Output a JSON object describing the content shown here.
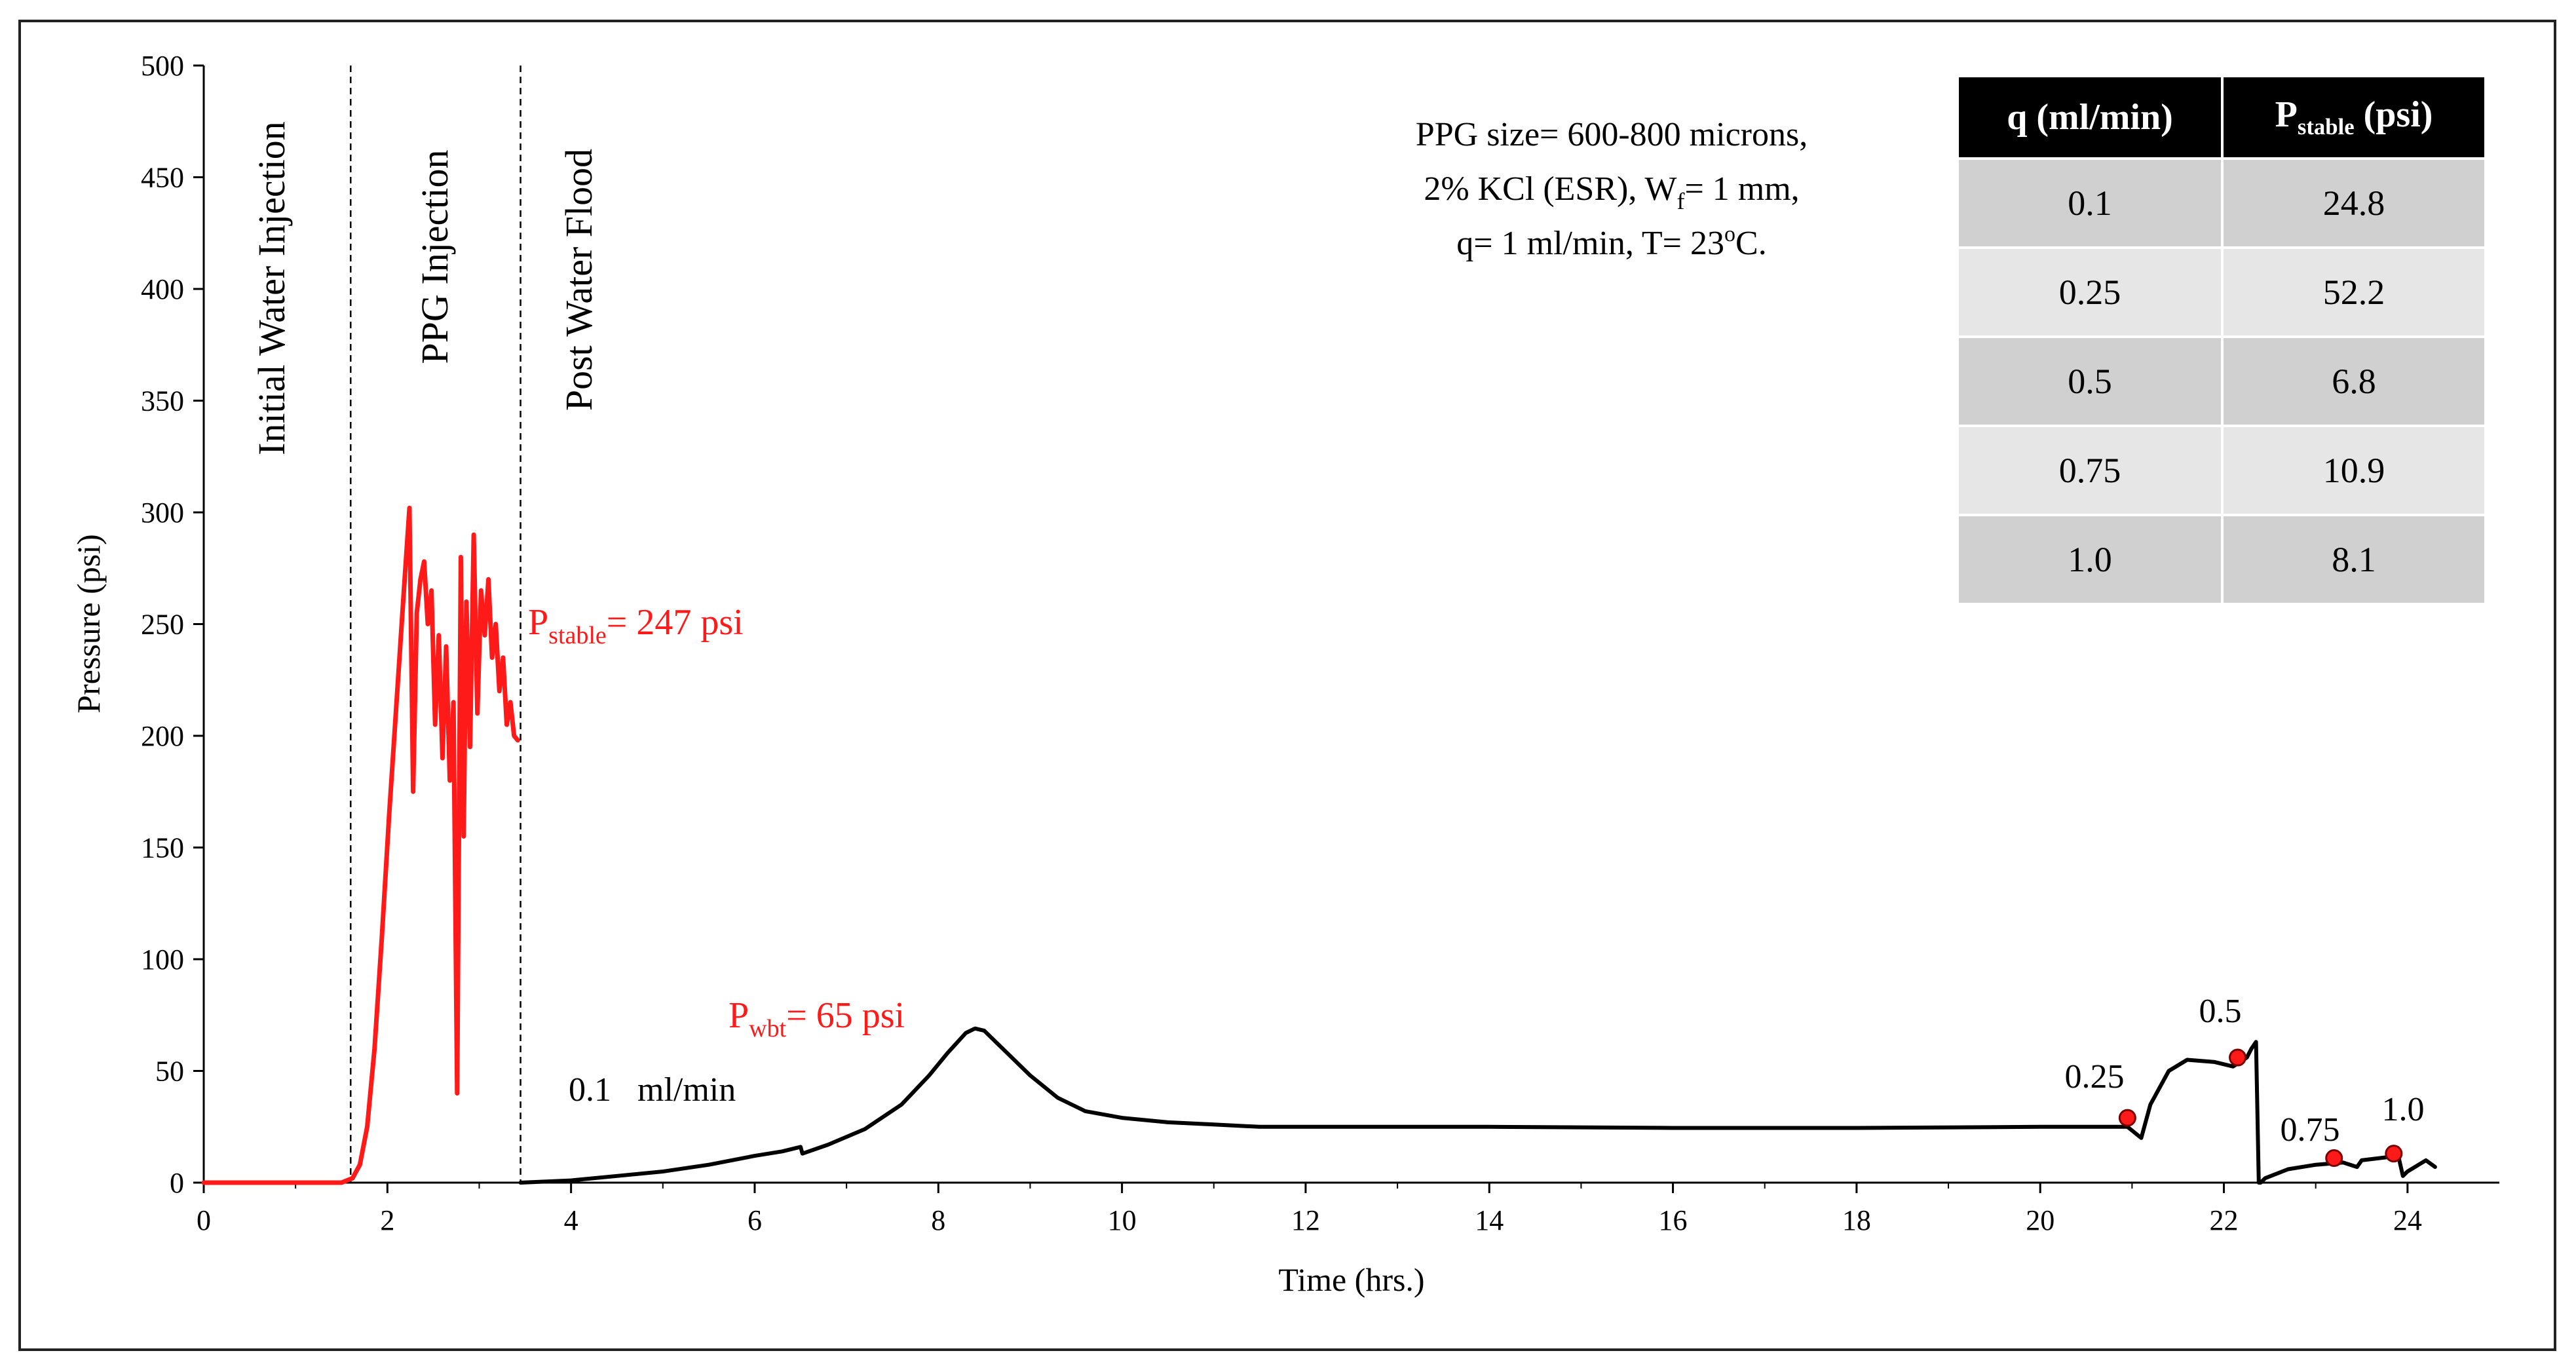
{
  "chart_data": {
    "type": "line",
    "xlabel": "Time (hrs.)",
    "ylabel": "Pressure (psi)",
    "xlim": [
      0,
      25
    ],
    "ylim": [
      0,
      500
    ],
    "xticks": [
      0,
      2,
      4,
      6,
      8,
      10,
      12,
      14,
      16,
      18,
      20,
      22,
      24
    ],
    "yticks": [
      0,
      50,
      100,
      150,
      200,
      250,
      300,
      350,
      400,
      450,
      500
    ],
    "grid": false,
    "phase_boundaries": [
      1.6,
      3.45
    ],
    "phase_labels": [
      "Initial Water Injection",
      "PPG Injection",
      "Post Water Flood"
    ],
    "series": [
      {
        "color": "#ff1a1a",
        "x": [
          0,
          1.5,
          1.62,
          1.7,
          1.78,
          1.86,
          1.94,
          2.02,
          2.1,
          2.18,
          2.24,
          2.28,
          2.32,
          2.36,
          2.4,
          2.44,
          2.48,
          2.52,
          2.56,
          2.6,
          2.64,
          2.68,
          2.72,
          2.76,
          2.8,
          2.83,
          2.86,
          2.9,
          2.94,
          2.98,
          3.02,
          3.06,
          3.1,
          3.14,
          3.18,
          3.22,
          3.26,
          3.3,
          3.34,
          3.38,
          3.42
        ],
        "y": [
          0,
          0,
          2,
          8,
          25,
          60,
          110,
          165,
          215,
          265,
          302,
          175,
          255,
          270,
          278,
          250,
          265,
          205,
          245,
          190,
          240,
          180,
          215,
          40,
          280,
          155,
          260,
          195,
          290,
          210,
          265,
          245,
          270,
          235,
          250,
          220,
          235,
          205,
          215,
          200,
          198
        ]
      },
      {
        "color": "#000000",
        "x": [
          3.45,
          4,
          4.5,
          5,
          5.5,
          6,
          6.3,
          6.5,
          6.52,
          6.8,
          7.2,
          7.6,
          7.9,
          8.1,
          8.3,
          8.4,
          8.5,
          8.7,
          9,
          9.3,
          9.6,
          10,
          10.5,
          11,
          11.5,
          12,
          14,
          16,
          18,
          20,
          20.95,
          21.1,
          21.2,
          21.4,
          21.6,
          21.9,
          22.1,
          22.25,
          22.3,
          22.35,
          22.38,
          22.4,
          22.45,
          22.7,
          23,
          23.3,
          23.45,
          23.5,
          23.7,
          23.9,
          23.95,
          24,
          24.2,
          24.3
        ],
        "y": [
          0,
          1,
          3,
          5,
          8,
          12,
          14,
          16,
          13,
          17,
          24,
          35,
          48,
          58,
          67,
          69,
          68,
          60,
          48,
          38,
          32,
          29,
          27,
          26,
          25,
          25,
          25,
          24.5,
          24.5,
          25,
          25,
          20,
          35,
          50,
          55,
          54,
          52,
          56,
          60,
          63,
          0,
          0,
          2,
          6,
          8,
          9,
          7,
          10,
          11,
          12,
          3,
          5,
          10,
          7
        ]
      }
    ],
    "markers": [
      {
        "x": 20.95,
        "y": 29,
        "color": "#ff1a1a"
      },
      {
        "x": 22.15,
        "y": 56,
        "color": "#ff1a1a"
      },
      {
        "x": 23.2,
        "y": 11,
        "color": "#ff1a1a"
      },
      {
        "x": 23.85,
        "y": 13,
        "color": "#ff1a1a"
      }
    ]
  },
  "labels": {
    "p_stable": {
      "main": "P",
      "sub": "stable",
      "rest": "= 247 psi"
    },
    "p_wbt": {
      "main": "P",
      "sub": "wbt",
      "rest": "= 65 psi"
    },
    "rate_initial": {
      "value": "0.1",
      "unit": "ml/min"
    },
    "rate_points": [
      "0.25",
      "0.5",
      "0.75",
      "1.0"
    ]
  },
  "info": {
    "line1": "PPG size= 600-800 microns,",
    "line2_a": "2% KCl (ESR), W",
    "line2_sub": "f",
    "line2_b": "= 1 mm,",
    "line3_a": "q= 1 ml/min, T= 23",
    "line3_sup": "o",
    "line3_b": "C."
  },
  "table": {
    "header_q": "q (ml/min)",
    "header_p_main": "P",
    "header_p_sub": "stable",
    "header_p_rest": " (psi)",
    "rows": [
      {
        "q": "0.1",
        "p": "24.8"
      },
      {
        "q": "0.25",
        "p": "52.2"
      },
      {
        "q": "0.5",
        "p": "6.8"
      },
      {
        "q": "0.75",
        "p": "10.9"
      },
      {
        "q": "1.0",
        "p": "8.1"
      }
    ]
  }
}
